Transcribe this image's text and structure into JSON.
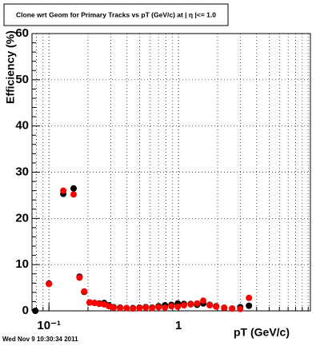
{
  "chart_data": {
    "type": "scatter",
    "title": "Clone wrt Geom for Primary Tracks vs pT (GeV/c) at | η |<= 1.0",
    "x_label": "pT (GeV/c)",
    "y_label": "Efficiency (%)",
    "footer": "Wed Nov  9 10:30:34 2011",
    "x_log": true,
    "grid": true,
    "xlim": [
      0.074,
      10.4
    ],
    "ylim": [
      0,
      60
    ],
    "xticks": [
      {
        "value": 0.1,
        "label": "10⁻¹"
      },
      1
    ],
    "yticks": [
      0,
      10,
      20,
      30,
      40,
      50,
      60
    ],
    "x": [
      0.0785,
      0.1,
      0.129,
      0.155,
      0.172,
      0.187,
      0.206,
      0.225,
      0.245,
      0.267,
      0.29,
      0.316,
      0.354,
      0.397,
      0.445,
      0.499,
      0.558,
      0.626,
      0.701,
      0.785,
      0.88,
      0.986,
      1.1,
      1.24,
      1.39,
      1.55,
      1.74,
      1.95,
      2.25,
      2.59,
      2.99,
      3.49
    ],
    "series": [
      {
        "color": "#000000",
        "values": [
          0.0,
          5.9,
          25.3,
          26.5,
          7.4,
          4.1,
          1.8,
          1.7,
          1.6,
          1.7,
          1.2,
          0.8,
          0.7,
          0.6,
          0.6,
          0.7,
          0.8,
          0.7,
          1.0,
          1.2,
          1.3,
          1.6,
          1.5,
          1.5,
          1.3,
          1.6,
          1.3,
          1.0,
          0.6,
          0.5,
          0.8,
          1.1
        ]
      },
      {
        "color": "#ff0000",
        "values": [
          null,
          5.8,
          26.0,
          25.2,
          7.2,
          4.2,
          1.8,
          1.7,
          1.5,
          1.4,
          1.0,
          0.7,
          0.6,
          0.6,
          0.5,
          0.6,
          0.7,
          0.6,
          0.8,
          0.7,
          1.0,
          0.9,
          1.2,
          1.4,
          1.6,
          2.2,
          1.2,
          0.9,
          0.7,
          0.5,
          0.4,
          2.8
        ]
      }
    ]
  }
}
